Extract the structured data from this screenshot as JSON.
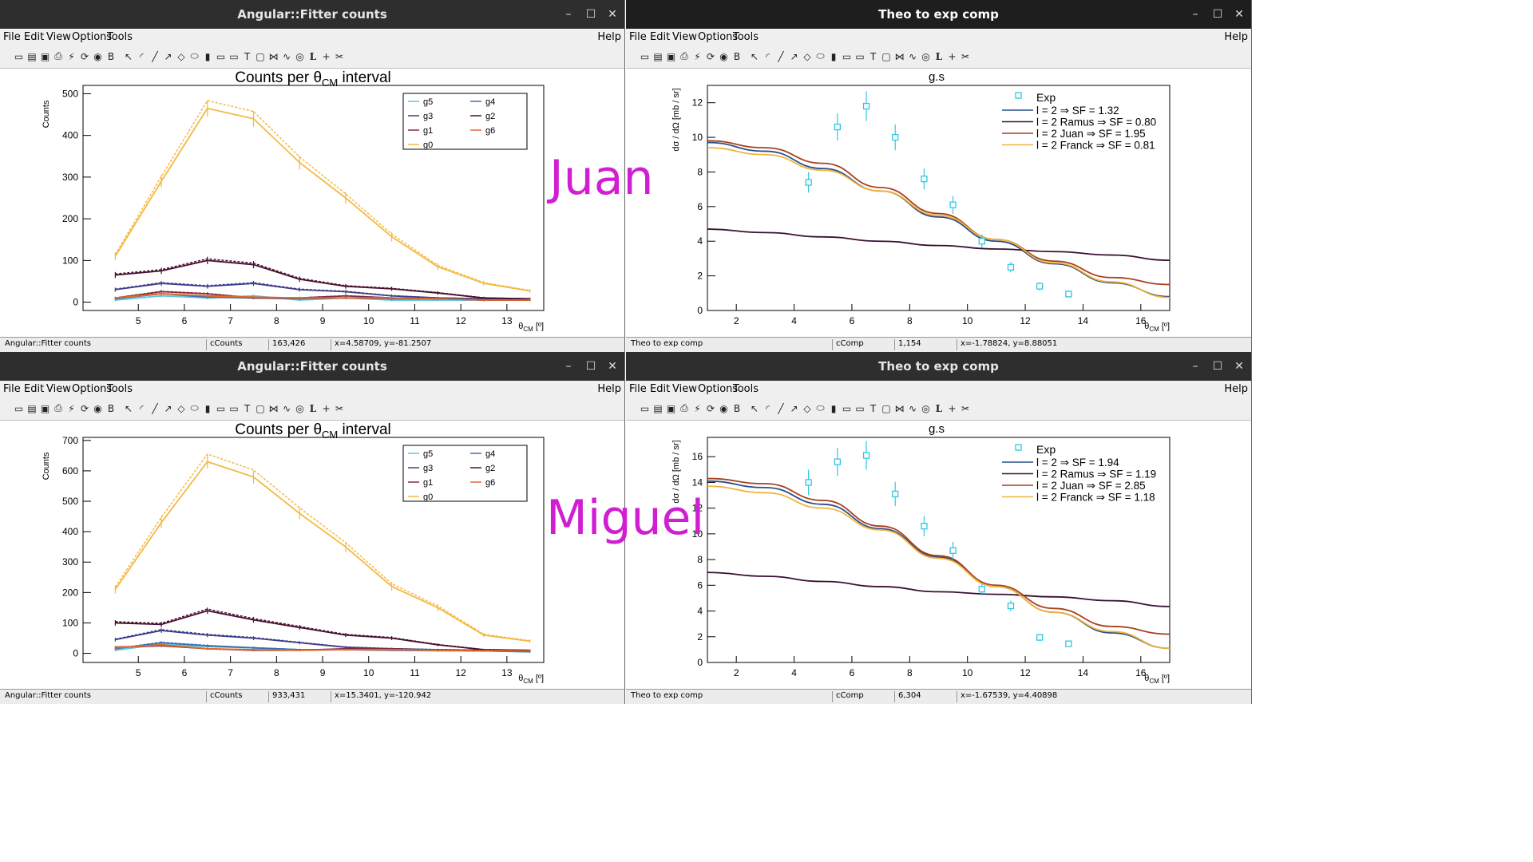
{
  "menu": {
    "file": "File",
    "edit": "Edit",
    "view": "View",
    "options": "Options",
    "tools": "Tools",
    "help": "Help"
  },
  "overlays": {
    "juan": "Juan",
    "miguel": "Miguel"
  },
  "counts_windows": [
    {
      "title": "Angular::Fitter counts",
      "status": {
        "name": "Angular::Fitter counts",
        "canvas": "cCounts",
        "pixel": "163,426",
        "coords": "x=4.58709, y=-81.2507"
      },
      "plot_title": "Counts per θ",
      "plot_title_sub": "CM",
      "plot_title_tail": " interval",
      "xlabel": "θ",
      "xlabel_sub": "CM",
      "xlabel_unit": " [º]",
      "ylabel": "Counts"
    },
    {
      "title": "Angular::Fitter counts",
      "status": {
        "name": "Angular::Fitter counts",
        "canvas": "cCounts",
        "pixel": "933,431",
        "coords": "x=15.3401, y=-120.942"
      },
      "plot_title": "Counts per θ",
      "plot_title_sub": "CM",
      "plot_title_tail": " interval",
      "xlabel": "θ",
      "xlabel_sub": "CM",
      "xlabel_unit": " [º]",
      "ylabel": "Counts"
    }
  ],
  "comp_windows": [
    {
      "title": "Theo to exp comp",
      "status": {
        "name": "Theo to exp comp",
        "canvas": "cComp",
        "pixel": "1,154",
        "coords": "x=-1.78824, y=8.88051"
      },
      "plot_title": "g.s",
      "xlabel": "θ",
      "xlabel_sub": "CM",
      "xlabel_unit": " [º]",
      "ylabel": "dσ / dΩ [mb / sr]"
    },
    {
      "title": "Theo to exp comp",
      "status": {
        "name": "Theo to exp comp",
        "canvas": "cComp",
        "pixel": "6,304",
        "coords": "x=-1.67539, y=4.40898"
      },
      "plot_title": "g.s",
      "xlabel": "θ",
      "xlabel_sub": "CM",
      "xlabel_unit": " [º]",
      "ylabel": "dσ / dΩ [mb / sr]"
    }
  ],
  "chart_data": [
    {
      "type": "line",
      "panel": "Juan counts",
      "x": [
        4.5,
        5.5,
        6.5,
        7.5,
        8.5,
        9.5,
        10.5,
        11.5,
        12.5,
        13.5
      ],
      "xlim": [
        3.8,
        13.8
      ],
      "ylim": [
        -20,
        520
      ],
      "xticks": [
        5,
        6,
        7,
        8,
        9,
        10,
        11,
        12,
        13
      ],
      "yticks": [
        0,
        100,
        200,
        300,
        400,
        500
      ],
      "legend_position": "top-right",
      "series": [
        {
          "name": "g5",
          "color": "#5bc8e6",
          "values": [
            5,
            15,
            10,
            15,
            5,
            10,
            5,
            5,
            5,
            5
          ]
        },
        {
          "name": "g4",
          "color": "#3a6fb0",
          "values": [
            8,
            20,
            12,
            10,
            8,
            10,
            8,
            8,
            5,
            5
          ]
        },
        {
          "name": "g3",
          "color": "#3d3d8a",
          "values": [
            30,
            45,
            38,
            45,
            30,
            25,
            15,
            10,
            8,
            5
          ]
        },
        {
          "name": "g2",
          "color": "#4a1030",
          "values": [
            65,
            75,
            100,
            90,
            55,
            38,
            32,
            22,
            10,
            8
          ]
        },
        {
          "name": "g1",
          "color": "#8a2a3a",
          "values": [
            10,
            25,
            20,
            10,
            10,
            15,
            10,
            8,
            5,
            5
          ]
        },
        {
          "name": "g6",
          "color": "#e06a2a",
          "values": [
            10,
            20,
            15,
            12,
            10,
            10,
            10,
            8,
            5,
            5
          ]
        },
        {
          "name": "g0",
          "color": "#f4b942",
          "values": [
            110,
            290,
            465,
            440,
            335,
            250,
            157,
            85,
            45,
            27
          ]
        }
      ]
    },
    {
      "type": "line",
      "panel": "Juan comparison",
      "xlim": [
        1,
        17
      ],
      "ylim": [
        0,
        13
      ],
      "xticks": [
        2,
        4,
        6,
        8,
        10,
        12,
        14,
        16
      ],
      "yticks": [
        0,
        2,
        4,
        6,
        8,
        10,
        12
      ],
      "legend_position": "top-right",
      "exp": {
        "name": "Exp",
        "color": "#2ec8e0",
        "x": [
          4.5,
          5.5,
          6.5,
          7.5,
          8.5,
          9.5,
          10.5,
          11.5,
          12.5,
          13.5
        ],
        "y": [
          7.4,
          10.6,
          11.8,
          10.0,
          7.6,
          6.1,
          4.0,
          2.5,
          1.4,
          0.95
        ]
      },
      "series": [
        {
          "name": "l = 2 ⇒ SF = 1.32",
          "color": "#2a4f8a",
          "x": [
            1,
            3,
            5,
            7,
            9,
            11,
            13,
            15,
            17
          ],
          "y": [
            9.7,
            9.2,
            8.2,
            6.9,
            5.4,
            4.0,
            2.7,
            1.6,
            0.8
          ]
        },
        {
          "name": "l = 2 Ramus ⇒ SF = 0.80",
          "color": "#3a1030",
          "x": [
            1,
            3,
            5,
            7,
            9,
            11,
            13,
            15,
            17
          ],
          "y": [
            4.7,
            4.5,
            4.25,
            4.0,
            3.75,
            3.55,
            3.4,
            3.2,
            2.9
          ]
        },
        {
          "name": "l = 2 Juan ⇒ SF = 1.95",
          "color": "#a8401e",
          "x": [
            1,
            3,
            5,
            7,
            9,
            11,
            13,
            15,
            17
          ],
          "y": [
            9.8,
            9.4,
            8.5,
            7.1,
            5.6,
            4.1,
            2.85,
            1.9,
            1.5
          ]
        },
        {
          "name": "l = 2 Franck ⇒ SF = 0.81",
          "color": "#f2b33a",
          "x": [
            1,
            3,
            5,
            7,
            9,
            11,
            13,
            15,
            17
          ],
          "y": [
            9.4,
            9.0,
            8.1,
            6.9,
            5.5,
            4.1,
            2.75,
            1.65,
            0.75
          ]
        }
      ]
    },
    {
      "type": "line",
      "panel": "Miguel counts",
      "x": [
        4.5,
        5.5,
        6.5,
        7.5,
        8.5,
        9.5,
        10.5,
        11.5,
        12.5,
        13.5
      ],
      "xlim": [
        3.8,
        13.8
      ],
      "ylim": [
        -30,
        710
      ],
      "xticks": [
        5,
        6,
        7,
        8,
        9,
        10,
        11,
        12,
        13
      ],
      "yticks": [
        0,
        100,
        200,
        300,
        400,
        500,
        600,
        700
      ],
      "legend_position": "top-right",
      "series": [
        {
          "name": "g5",
          "color": "#5bc8e6",
          "values": [
            10,
            30,
            22,
            18,
            12,
            12,
            10,
            8,
            8,
            5
          ]
        },
        {
          "name": "g4",
          "color": "#3a6fb0",
          "values": [
            15,
            35,
            25,
            18,
            12,
            12,
            10,
            10,
            8,
            5
          ]
        },
        {
          "name": "g3",
          "color": "#3d3d8a",
          "values": [
            45,
            75,
            60,
            50,
            35,
            20,
            15,
            12,
            10,
            8
          ]
        },
        {
          "name": "g2",
          "color": "#4a1030",
          "values": [
            100,
            95,
            140,
            110,
            85,
            60,
            50,
            28,
            12,
            10
          ]
        },
        {
          "name": "g1",
          "color": "#8a2a3a",
          "values": [
            20,
            25,
            15,
            10,
            10,
            15,
            15,
            10,
            10,
            8
          ]
        },
        {
          "name": "g6",
          "color": "#e06a2a",
          "values": [
            18,
            28,
            15,
            12,
            10,
            12,
            12,
            10,
            8,
            8
          ]
        },
        {
          "name": "g0",
          "color": "#f4b942",
          "values": [
            210,
            430,
            630,
            580,
            460,
            350,
            220,
            150,
            60,
            40
          ]
        }
      ]
    },
    {
      "type": "line",
      "panel": "Miguel comparison",
      "xlim": [
        1,
        17
      ],
      "ylim": [
        0,
        17.5
      ],
      "xticks": [
        2,
        4,
        6,
        8,
        10,
        12,
        14,
        16
      ],
      "yticks": [
        0,
        2,
        4,
        6,
        8,
        10,
        12,
        14,
        16
      ],
      "legend_position": "top-right",
      "exp": {
        "name": "Exp",
        "color": "#2ec8e0",
        "x": [
          4.5,
          5.5,
          6.5,
          7.5,
          8.5,
          9.5,
          10.5,
          11.5,
          12.5,
          13.5
        ],
        "y": [
          14.0,
          15.6,
          16.1,
          13.1,
          10.6,
          8.7,
          5.7,
          4.4,
          1.95,
          1.45
        ]
      },
      "series": [
        {
          "name": "l = 2 ⇒ SF = 1.94",
          "color": "#2a4f8a",
          "x": [
            1,
            3,
            5,
            7,
            9,
            11,
            13,
            15,
            17
          ],
          "y": [
            14.1,
            13.6,
            12.3,
            10.4,
            8.2,
            5.9,
            3.9,
            2.3,
            1.1
          ]
        },
        {
          "name": "l = 2 Ramus ⇒ SF = 1.19",
          "color": "#3a1030",
          "x": [
            1,
            3,
            5,
            7,
            9,
            11,
            13,
            15,
            17
          ],
          "y": [
            7.0,
            6.7,
            6.3,
            5.9,
            5.5,
            5.3,
            5.1,
            4.8,
            4.35
          ]
        },
        {
          "name": "l = 2 Juan ⇒ SF = 2.85",
          "color": "#a8401e",
          "x": [
            1,
            3,
            5,
            7,
            9,
            11,
            13,
            15,
            17
          ],
          "y": [
            14.3,
            13.9,
            12.6,
            10.6,
            8.3,
            6.0,
            4.2,
            2.8,
            2.2
          ]
        },
        {
          "name": "l = 2 Franck ⇒ SF = 1.18",
          "color": "#f2b33a",
          "x": [
            1,
            3,
            5,
            7,
            9,
            11,
            13,
            15,
            17
          ],
          "y": [
            13.7,
            13.2,
            12.0,
            10.3,
            8.1,
            5.9,
            3.9,
            2.4,
            1.1
          ]
        }
      ]
    }
  ]
}
